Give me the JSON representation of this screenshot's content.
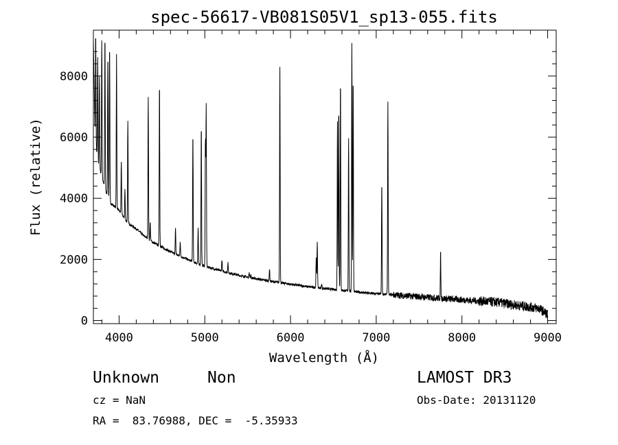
{
  "chart_data": {
    "type": "line",
    "title": "spec-56617-VB081S05V1_sp13-055.fits",
    "xlabel": "Wavelength (Å)",
    "ylabel": "Flux (relative)",
    "xlim": [
      3700,
      9100
    ],
    "ylim": [
      -100,
      9500
    ],
    "xticks": [
      4000,
      5000,
      6000,
      7000,
      8000,
      9000
    ],
    "yticks": [
      0,
      2000,
      4000,
      6000,
      8000
    ],
    "xtick_labels": [
      "4000",
      "5000",
      "6000",
      "7000",
      "8000",
      "9000"
    ],
    "ytick_labels": [
      "0",
      "2000",
      "4000",
      "6000",
      "8000"
    ],
    "continuum": [
      [
        3700,
        9200
      ],
      [
        3720,
        6000
      ],
      [
        3750,
        5200
      ],
      [
        3800,
        4700
      ],
      [
        3850,
        4200
      ],
      [
        3900,
        3850
      ],
      [
        4000,
        3600
      ],
      [
        4100,
        3200
      ],
      [
        4200,
        3000
      ],
      [
        4300,
        2750
      ],
      [
        4400,
        2550
      ],
      [
        4500,
        2400
      ],
      [
        4600,
        2250
      ],
      [
        4700,
        2120
      ],
      [
        4800,
        2000
      ],
      [
        4900,
        1880
      ],
      [
        5000,
        1780
      ],
      [
        5100,
        1700
      ],
      [
        5200,
        1620
      ],
      [
        5300,
        1550
      ],
      [
        5400,
        1480
      ],
      [
        5500,
        1420
      ],
      [
        5600,
        1370
      ],
      [
        5700,
        1320
      ],
      [
        5800,
        1270
      ],
      [
        5900,
        1230
      ],
      [
        6000,
        1190
      ],
      [
        6100,
        1150
      ],
      [
        6200,
        1110
      ],
      [
        6300,
        1080
      ],
      [
        6400,
        1050
      ],
      [
        6500,
        1020
      ],
      [
        6600,
        990
      ],
      [
        6700,
        960
      ],
      [
        6800,
        930
      ],
      [
        6900,
        900
      ],
      [
        7000,
        880
      ],
      [
        7100,
        860
      ],
      [
        7200,
        840
      ],
      [
        7300,
        820
      ],
      [
        7400,
        800
      ],
      [
        7500,
        780
      ],
      [
        7600,
        760
      ],
      [
        7700,
        740
      ],
      [
        7800,
        720
      ],
      [
        7900,
        700
      ],
      [
        8000,
        680
      ],
      [
        8100,
        660
      ],
      [
        8200,
        640
      ],
      [
        8300,
        620
      ],
      [
        8400,
        600
      ],
      [
        8500,
        560
      ],
      [
        8600,
        520
      ],
      [
        8700,
        480
      ],
      [
        8800,
        440
      ],
      [
        8900,
        400
      ],
      [
        9000,
        200
      ]
    ],
    "emission_lines": [
      {
        "x": 3727,
        "peak": 9400
      },
      {
        "x": 3750,
        "peak": 8600
      },
      {
        "x": 3770,
        "peak": 8000
      },
      {
        "x": 3798,
        "peak": 9200
      },
      {
        "x": 3835,
        "peak": 9300
      },
      {
        "x": 3869,
        "peak": 8700
      },
      {
        "x": 3889,
        "peak": 9000
      },
      {
        "x": 3970,
        "peak": 8700
      },
      {
        "x": 4026,
        "peak": 5200
      },
      {
        "x": 4068,
        "peak": 4300
      },
      {
        "x": 4102,
        "peak": 6500
      },
      {
        "x": 4340,
        "peak": 7300
      },
      {
        "x": 4363,
        "peak": 3200
      },
      {
        "x": 4471,
        "peak": 7800
      },
      {
        "x": 4658,
        "peak": 3000
      },
      {
        "x": 4713,
        "peak": 2600
      },
      {
        "x": 4861,
        "peak": 6100
      },
      {
        "x": 4922,
        "peak": 3000
      },
      {
        "x": 4959,
        "peak": 6400
      },
      {
        "x": 5007,
        "peak": 5900
      },
      {
        "x": 5016,
        "peak": 7000
      },
      {
        "x": 5200,
        "peak": 2000
      },
      {
        "x": 5270,
        "peak": 1900
      },
      {
        "x": 5518,
        "peak": 1600
      },
      {
        "x": 5538,
        "peak": 1500
      },
      {
        "x": 5755,
        "peak": 1700
      },
      {
        "x": 5876,
        "peak": 8300
      },
      {
        "x": 6300,
        "peak": 2100
      },
      {
        "x": 6312,
        "peak": 2600
      },
      {
        "x": 6363,
        "peak": 1200
      },
      {
        "x": 6548,
        "peak": 6500
      },
      {
        "x": 6563,
        "peak": 7000
      },
      {
        "x": 6583,
        "peak": 7900
      },
      {
        "x": 6678,
        "peak": 6000
      },
      {
        "x": 6716,
        "peak": 9100
      },
      {
        "x": 6731,
        "peak": 8000
      },
      {
        "x": 7065,
        "peak": 4500
      },
      {
        "x": 7136,
        "peak": 7200
      },
      {
        "x": 7751,
        "peak": 2200
      },
      {
        "x": 8446,
        "peak": 700
      }
    ]
  },
  "info": {
    "class_label": "Unknown",
    "subclass_label": "Non",
    "survey": "LAMOST DR3",
    "cz": "cz = NaN",
    "obs_date": "Obs-Date: 20131120",
    "coords": "RA =  83.76988, DEC =  -5.35933"
  }
}
